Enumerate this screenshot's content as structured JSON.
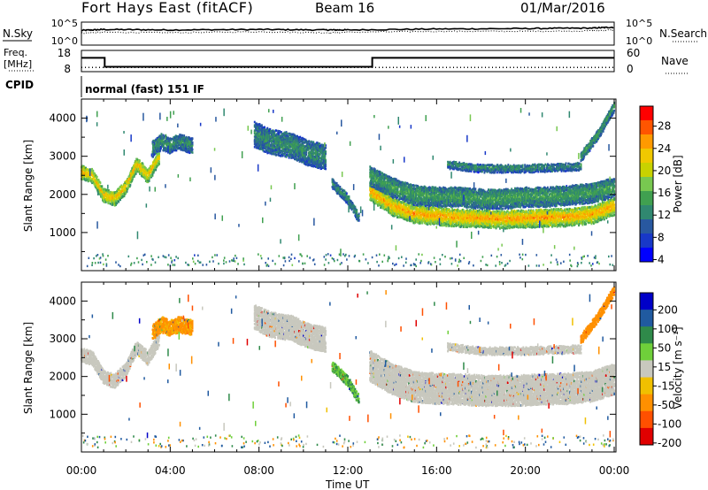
{
  "header": {
    "station": "Fort Hays East (fitACF)",
    "beam": "Beam 16",
    "date": "01/Mar/2016"
  },
  "sky_panel": {
    "left_label": "N.Sky",
    "left_ticks": [
      "10^5",
      "10^0"
    ],
    "right_label": "N.Search",
    "right_ticks": [
      "10^5",
      "10^0"
    ]
  },
  "freq_panel": {
    "left_label_1": "Freq.",
    "left_label_2": "[MHz]",
    "left_ticks": [
      "18",
      "8"
    ],
    "right_label": "Nave",
    "right_ticks": [
      "60",
      "0"
    ]
  },
  "cpid_panel": {
    "label": "CPID",
    "text": "normal (fast) 151 IF"
  },
  "x_axis": {
    "label": "Time UT",
    "ticks": [
      "00:00",
      "04:00",
      "08:00",
      "12:00",
      "16:00",
      "20:00",
      "00:00"
    ]
  },
  "power_colorbar": {
    "label": "Power [dB]",
    "ticks": [
      "28",
      "24",
      "20",
      "16",
      "12",
      "8",
      "4"
    ],
    "colors": [
      "#ff0000",
      "#ff5500",
      "#ff9a00",
      "#f0c800",
      "#c8d200",
      "#78c850",
      "#40a050",
      "#308870",
      "#2858a0",
      "#1838c8",
      "#0000ff"
    ]
  },
  "velocity_colorbar": {
    "label": "Velocity [m s⁻¹]",
    "ticks": [
      "200",
      "100",
      "50",
      "15",
      "-15",
      "-50",
      "-100",
      "-200"
    ],
    "colors": [
      "#0000c8",
      "#205aa0",
      "#2f8a4a",
      "#6fcf3a",
      "#c8c8be",
      "#f0c000",
      "#ff9000",
      "#ff5000",
      "#e00000"
    ]
  },
  "chart_data": [
    {
      "type": "line",
      "title": "N.Sky / N.Search",
      "x": [
        0,
        1,
        4,
        8,
        11,
        12,
        16,
        20,
        23,
        24
      ],
      "series": [
        {
          "values": [
            3.2,
            3.4,
            3.3,
            3.4,
            3.3,
            3.3,
            3.5,
            3.6,
            3.7,
            3.9
          ]
        },
        {
          "values": [
            2.6,
            2.8,
            2.7,
            2.9,
            2.7,
            2.8,
            3.0,
            3.0,
            3.1,
            3.3
          ]
        }
      ],
      "ylim": [
        0,
        5
      ]
    },
    {
      "type": "line",
      "title": "Freq. / Nave",
      "series": [
        {
          "name": "Freq.",
          "x": [
            0,
            1.05,
            1.05,
            13.1,
            13.1,
            24
          ],
          "values": [
            14.5,
            14.5,
            10.3,
            10.3,
            14.5,
            14.5
          ]
        },
        {
          "name": "Nave",
          "x": [
            0,
            24
          ],
          "values": [
            10,
            10
          ]
        }
      ],
      "ylim": [
        8,
        18
      ]
    },
    {
      "type": "heatmap",
      "title": "Power",
      "xlabel": "Time UT",
      "ylabel": "Slant Range [km]",
      "xlim": [
        0,
        24
      ],
      "ylim": [
        0,
        4500
      ],
      "yticks": [
        1000,
        2000,
        3000,
        4000
      ],
      "clim": [
        0,
        30
      ],
      "echo_bands": [
        {
          "x": [
            0,
            0.5,
            1.0,
            1.5,
            2.0,
            2.5,
            3.0,
            3.5
          ],
          "y": [
            2600,
            2500,
            2000,
            1900,
            2200,
            2800,
            2500,
            3000
          ],
          "thickness": 350,
          "power": 22
        },
        {
          "x": [
            3.2,
            3.6,
            4.0,
            4.4,
            5.0
          ],
          "y": [
            3200,
            3400,
            3300,
            3400,
            3300
          ],
          "thickness": 400,
          "power": 10
        },
        {
          "x": [
            7.8,
            8.5,
            9.5,
            10.2,
            11.0
          ],
          "y": [
            3600,
            3400,
            3300,
            3100,
            3000
          ],
          "thickness": 650,
          "power": 10
        },
        {
          "x": [
            11.3,
            12.0,
            12.5
          ],
          "y": [
            2300,
            1900,
            1400
          ],
          "thickness": 250,
          "power": 10
        },
        {
          "x": [
            13.0,
            14,
            15,
            16,
            17,
            18,
            19,
            20,
            21,
            22,
            23,
            24
          ],
          "y": [
            2100,
            1700,
            1500,
            1450,
            1400,
            1380,
            1360,
            1380,
            1400,
            1420,
            1480,
            1700
          ],
          "thickness": 450,
          "power": 24
        },
        {
          "x": [
            13.0,
            14,
            15,
            16,
            17,
            18,
            19,
            20,
            21,
            22,
            23,
            24
          ],
          "y": [
            2500,
            2200,
            2000,
            1950,
            1950,
            1900,
            1900,
            1950,
            1950,
            2000,
            2050,
            2200
          ],
          "thickness": 500,
          "power": 12
        },
        {
          "x": [
            16.5,
            18,
            20,
            22.5
          ],
          "y": [
            2800,
            2700,
            2700,
            2750
          ],
          "thickness": 200,
          "power": 10
        },
        {
          "x": [
            22.5,
            23.3,
            24.0
          ],
          "y": [
            3000,
            3600,
            4300
          ],
          "thickness": 250,
          "power": 12
        }
      ]
    },
    {
      "type": "heatmap",
      "title": "Velocity",
      "xlabel": "Time UT",
      "ylabel": "Slant Range [km]",
      "xlim": [
        0,
        24
      ],
      "ylim": [
        0,
        4500
      ],
      "yticks": [
        1000,
        2000,
        3000,
        4000
      ],
      "clim": [
        -200,
        200
      ],
      "echo_bands": [
        {
          "x": [
            0,
            0.5,
            1.0,
            1.5,
            2.0,
            2.5,
            3.0,
            3.5
          ],
          "y": [
            2600,
            2500,
            2000,
            1900,
            2200,
            2800,
            2500,
            3000
          ],
          "thickness": 350,
          "velocity": 0
        },
        {
          "x": [
            3.2,
            3.6,
            4.0,
            4.4,
            5.0
          ],
          "y": [
            3200,
            3400,
            3300,
            3400,
            3300
          ],
          "thickness": 400,
          "velocity": -40
        },
        {
          "x": [
            7.8,
            8.5,
            9.5,
            10.2,
            11.0
          ],
          "y": [
            3600,
            3400,
            3300,
            3100,
            3000
          ],
          "thickness": 650,
          "velocity": 0
        },
        {
          "x": [
            11.3,
            12.0,
            12.5
          ],
          "y": [
            2300,
            1900,
            1400
          ],
          "thickness": 250,
          "velocity": 30
        },
        {
          "x": [
            13.0,
            14,
            15,
            16,
            17,
            18,
            19,
            20,
            21,
            22,
            23,
            24
          ],
          "y": [
            2300,
            1950,
            1750,
            1700,
            1680,
            1650,
            1640,
            1660,
            1680,
            1700,
            1760,
            1950
          ],
          "thickness": 800,
          "velocity": 0
        },
        {
          "x": [
            16.5,
            18,
            20,
            22.5
          ],
          "y": [
            2800,
            2700,
            2700,
            2750
          ],
          "thickness": 200,
          "velocity": 0
        },
        {
          "x": [
            22.5,
            23.3,
            24.0
          ],
          "y": [
            3000,
            3600,
            4300
          ],
          "thickness": 250,
          "velocity": -60
        }
      ]
    }
  ]
}
